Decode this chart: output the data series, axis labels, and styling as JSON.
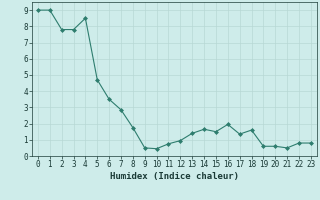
{
  "x": [
    0,
    1,
    2,
    3,
    4,
    5,
    6,
    7,
    8,
    9,
    10,
    11,
    12,
    13,
    14,
    15,
    16,
    17,
    18,
    19,
    20,
    21,
    22,
    23
  ],
  "y": [
    9.0,
    9.0,
    7.8,
    7.8,
    8.5,
    4.7,
    3.5,
    2.85,
    1.75,
    0.5,
    0.45,
    0.75,
    0.95,
    1.4,
    1.65,
    1.5,
    1.95,
    1.35,
    1.6,
    0.6,
    0.6,
    0.5,
    0.8,
    0.8
  ],
  "xlabel": "Humidex (Indice chaleur)",
  "xlim": [
    -0.5,
    23.5
  ],
  "ylim": [
    0,
    9.5
  ],
  "line_color": "#2e7d6e",
  "marker_color": "#2e7d6e",
  "bg_color": "#ceecea",
  "grid_color": "#b8d8d5",
  "label_color": "#1a3a36",
  "xlabel_fontsize": 6.5,
  "tick_fontsize": 5.5,
  "yticks": [
    0,
    1,
    2,
    3,
    4,
    5,
    6,
    7,
    8,
    9
  ],
  "xticks": [
    0,
    1,
    2,
    3,
    4,
    5,
    6,
    7,
    8,
    9,
    10,
    11,
    12,
    13,
    14,
    15,
    16,
    17,
    18,
    19,
    20,
    21,
    22,
    23
  ]
}
